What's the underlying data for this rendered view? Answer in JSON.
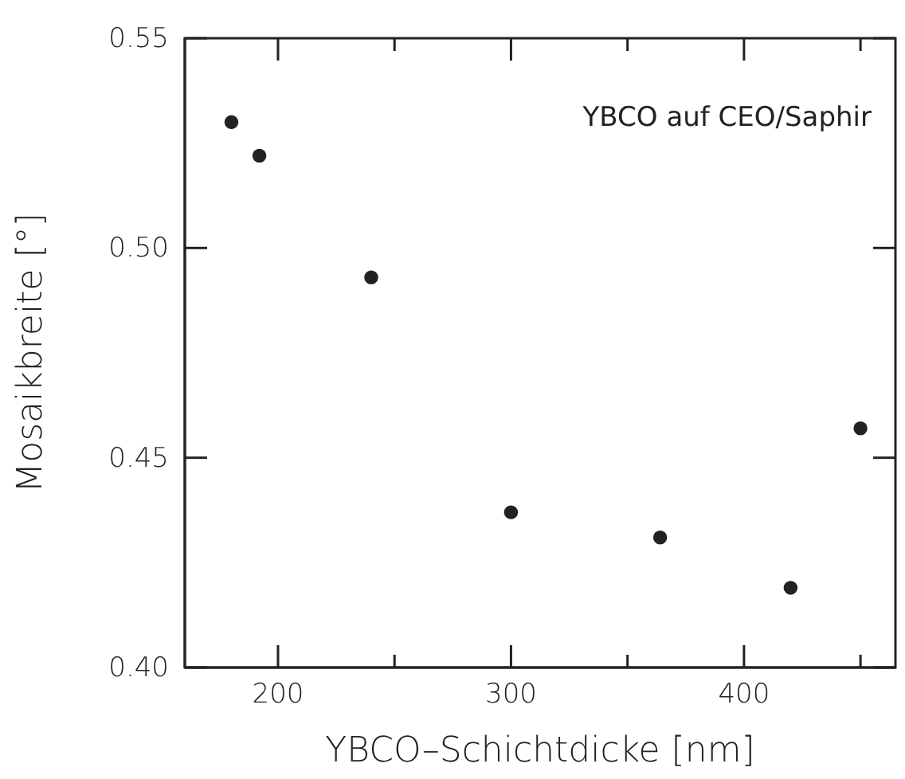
{
  "chart_data": {
    "type": "scatter",
    "xlabel": "YBCO–Schichtdicke [nm]",
    "ylabel": "Mosaikbreite [°]",
    "annotations": [
      "YBCO auf CEO/Saphir"
    ],
    "x": [
      180,
      192,
      240,
      300,
      364,
      420,
      450
    ],
    "values": [
      0.53,
      0.522,
      0.493,
      0.437,
      0.431,
      0.419,
      0.457
    ],
    "color": "#222222",
    "marker": "circle",
    "xlim": [
      160,
      465
    ],
    "xticks": [
      200,
      {
        "value": 250,
        "label": null
      },
      300,
      {
        "value": 350,
        "label": null
      },
      400,
      {
        "value": 450,
        "label": null
      }
    ],
    "ylim": [
      0.4,
      0.55
    ],
    "yticks": [
      {
        "value": 0.4,
        "label": "0.40"
      },
      {
        "value": 0.45,
        "label": "0.45"
      },
      {
        "value": 0.5,
        "label": "0.50"
      },
      {
        "value": 0.55,
        "label": "0.55"
      }
    ],
    "grid": false
  }
}
